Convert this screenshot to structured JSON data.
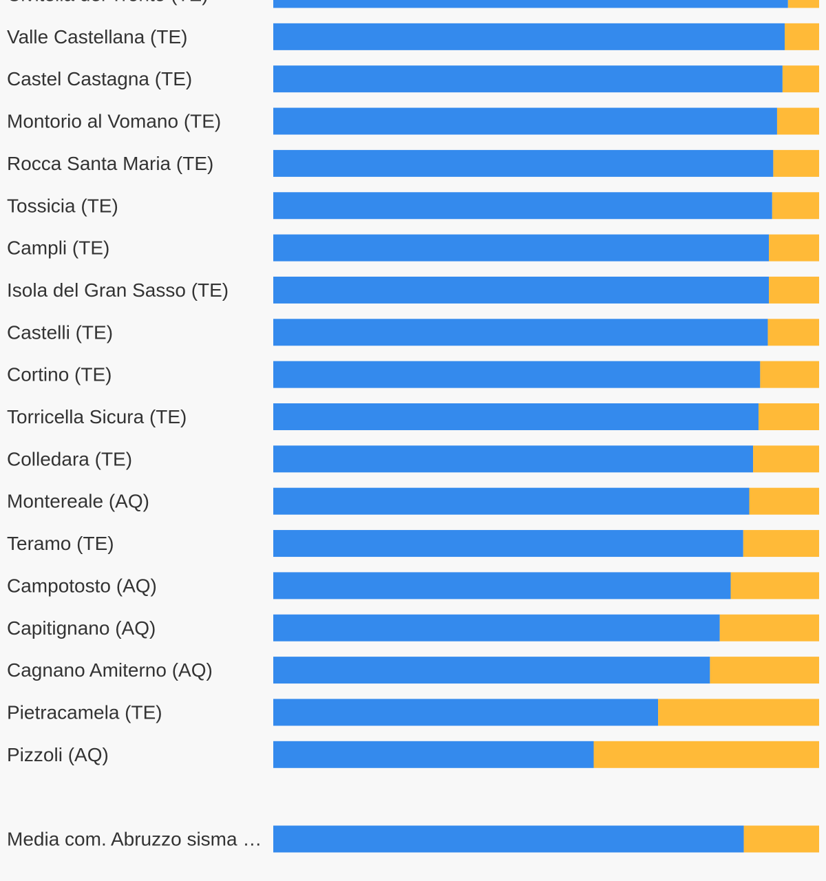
{
  "chart_data": {
    "type": "bar",
    "orientation": "horizontal",
    "stacked": true,
    "normalized": true,
    "categories": [
      "Civitella del Tronto (TE)",
      "Valle Castellana (TE)",
      "Castel Castagna (TE)",
      "Montorio al Vomano (TE)",
      "Rocca Santa Maria (TE)",
      "Tossicia (TE)",
      "Campli (TE)",
      "Isola del Gran Sasso (TE)",
      "Castelli (TE)",
      "Cortino (TE)",
      "Torricella Sicura (TE)",
      "Colledara (TE)",
      "Montereale (AQ)",
      "Teramo (TE)",
      "Campotosto (AQ)",
      "Capitignano (AQ)",
      "Cagnano Amiterno (AQ)",
      "Pietracamela (TE)",
      "Pizzoli (AQ)",
      "",
      "Media com. Abruzzo sisma …"
    ],
    "series": [
      {
        "values": [
          94.3,
          93.7,
          93.3,
          92.3,
          91.6,
          91.4,
          90.8,
          90.8,
          90.6,
          89.2,
          88.9,
          87.9,
          87.2,
          86.1,
          83.8,
          81.8,
          80.0,
          70.5,
          58.7,
          null,
          86.2
        ]
      },
      {
        "values": [
          5.7,
          6.3,
          6.7,
          7.7,
          8.4,
          8.6,
          9.2,
          9.2,
          9.4,
          10.8,
          11.1,
          12.1,
          12.8,
          13.9,
          16.2,
          18.2,
          20.0,
          29.5,
          41.3,
          null,
          13.8
        ]
      }
    ],
    "xlim": [
      0,
      100
    ],
    "grid": false,
    "colors": [
      "#348aed",
      "#ffba38"
    ]
  }
}
